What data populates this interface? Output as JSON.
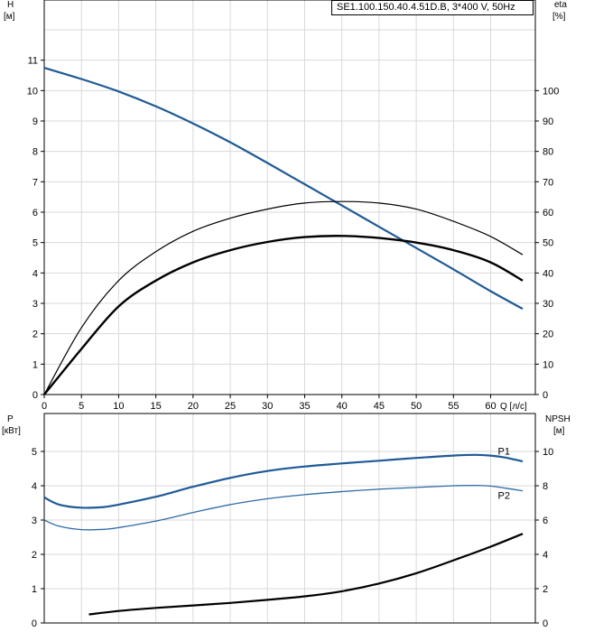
{
  "title": "SE1.100.150.40.4.51D.B, 3*400 V, 50Hz",
  "colors": {
    "head": "#1f5a96",
    "efficiency": "#000000",
    "p1": "#1f5a96",
    "p2": "#2e6aa5",
    "npsh": "#000000",
    "grid": "#d9d9d9"
  },
  "chart_data": [
    {
      "type": "line",
      "name": "head-efficiency",
      "xlabel": "Q [л/с]",
      "ylabel_left": "H",
      "ylabel_left_unit": "[м]",
      "ylabel_right": "eta",
      "ylabel_right_unit": "[%]",
      "xlim": [
        0,
        66
      ],
      "xticks": [
        0,
        5,
        10,
        15,
        20,
        25,
        30,
        35,
        40,
        45,
        50,
        55,
        60
      ],
      "ylim_left": [
        0,
        12
      ],
      "yticks_left": [
        0,
        1,
        2,
        3,
        4,
        5,
        6,
        7,
        8,
        9,
        10,
        11
      ],
      "ylim_right": [
        0,
        120
      ],
      "yticks_right": [
        0,
        10,
        20,
        30,
        40,
        50,
        60,
        70,
        80,
        90,
        100
      ],
      "grid": true,
      "series": [
        {
          "axis": "left",
          "style": "head",
          "x": [
            0,
            5,
            10,
            15,
            20,
            25,
            30,
            35,
            40,
            45,
            50,
            55,
            60,
            64.3
          ],
          "y": [
            10.75,
            10.38,
            9.97,
            9.48,
            8.92,
            8.3,
            7.62,
            6.92,
            6.22,
            5.52,
            4.82,
            4.12,
            3.4,
            2.82
          ]
        },
        {
          "axis": "right",
          "style": "efficiency-thin",
          "x": [
            0,
            5,
            10,
            15,
            20,
            25,
            30,
            35,
            40,
            45,
            50,
            55,
            60,
            64.3
          ],
          "y": [
            0,
            22,
            37.5,
            47,
            53.7,
            58,
            61,
            63,
            63.5,
            63,
            61,
            57,
            52,
            46
          ]
        },
        {
          "axis": "right",
          "style": "efficiency-bold",
          "x": [
            0,
            5,
            10,
            15,
            20,
            25,
            30,
            35,
            40,
            45,
            50,
            55,
            60,
            64.3
          ],
          "y": [
            0,
            15,
            29,
            37.5,
            43.5,
            47.5,
            50.2,
            51.8,
            52.2,
            51.5,
            50,
            47.5,
            43.5,
            37.5
          ]
        }
      ]
    },
    {
      "type": "line",
      "name": "power-npsh",
      "xlim": [
        0,
        66
      ],
      "xticks": [
        0,
        5,
        10,
        15,
        20,
        25,
        30,
        35,
        40,
        45,
        50,
        55,
        60
      ],
      "ylabel_left": "P",
      "ylabel_left_unit": "[кВт]",
      "ylabel_right": "NPSH",
      "ylabel_right_unit": "[м]",
      "ylim_left": [
        0,
        6
      ],
      "yticks_left": [
        0,
        1,
        2,
        3,
        4,
        5
      ],
      "ylim_right": [
        0,
        12
      ],
      "yticks_right": [
        0,
        2,
        4,
        6,
        8,
        10
      ],
      "grid": true,
      "series": [
        {
          "name": "P1",
          "axis": "left",
          "style": "p1",
          "x": [
            0,
            2,
            5,
            8,
            10,
            15,
            20,
            25,
            30,
            35,
            40,
            45,
            50,
            55,
            58,
            60,
            62,
            64.3
          ],
          "y": [
            3.66,
            3.45,
            3.36,
            3.38,
            3.45,
            3.68,
            3.97,
            4.23,
            4.43,
            4.56,
            4.65,
            4.73,
            4.81,
            4.88,
            4.9,
            4.88,
            4.82,
            4.71
          ]
        },
        {
          "name": "P2",
          "axis": "left",
          "style": "p2",
          "x": [
            0,
            2,
            5,
            8,
            10,
            15,
            20,
            25,
            30,
            35,
            40,
            45,
            50,
            55,
            58,
            60,
            62,
            64.3
          ],
          "y": [
            3.0,
            2.82,
            2.72,
            2.73,
            2.78,
            2.97,
            3.22,
            3.45,
            3.62,
            3.74,
            3.83,
            3.9,
            3.95,
            4.0,
            4.01,
            3.99,
            3.93,
            3.85
          ]
        },
        {
          "axis": "right",
          "style": "npsh",
          "x": [
            6,
            10,
            15,
            20,
            25,
            30,
            35,
            40,
            45,
            50,
            55,
            60,
            64.3
          ],
          "y": [
            0.5,
            0.7,
            0.88,
            1.02,
            1.17,
            1.35,
            1.55,
            1.85,
            2.3,
            2.9,
            3.65,
            4.45,
            5.2
          ]
        }
      ]
    }
  ]
}
